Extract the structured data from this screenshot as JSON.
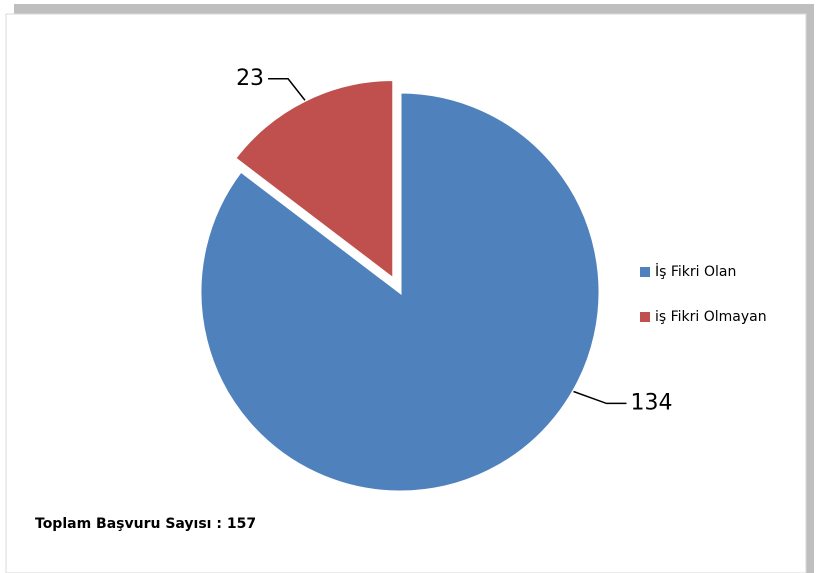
{
  "chart_data": {
    "type": "pie",
    "categories": [
      "İş Fikri Olan",
      "iş Fikri Olmayan"
    ],
    "values": [
      134,
      23
    ],
    "colors": [
      "#4f81bd",
      "#c0504d"
    ],
    "legend": "right",
    "annotation": "Toplam Başvuru Sayısı : 157"
  }
}
